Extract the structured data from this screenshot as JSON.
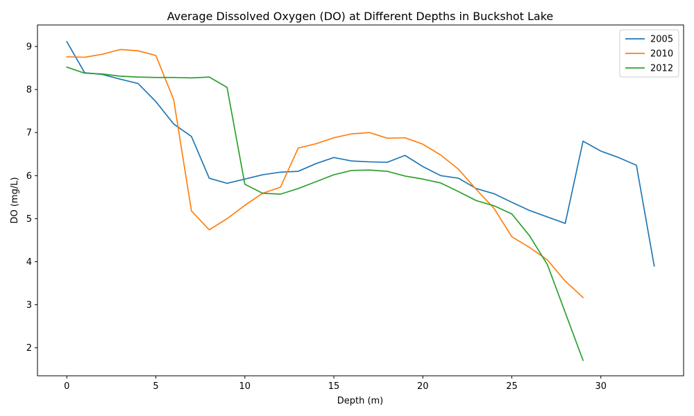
{
  "chart_data": {
    "type": "line",
    "title": "Average Dissolved Oxygen (DO) at Different Depths in Buckshot Lake",
    "xlabel": "Depth (m)",
    "ylabel": "DO (mg/L)",
    "xlim": [
      -1.65,
      34.65
    ],
    "ylim": [
      1.35,
      9.5
    ],
    "xticks": [
      0,
      5,
      10,
      15,
      20,
      25,
      30
    ],
    "yticks": [
      2,
      3,
      4,
      5,
      6,
      7,
      8,
      9
    ],
    "grid": false,
    "legend_position": "top-right",
    "series": [
      {
        "name": "2005",
        "color": "#1f77b4",
        "x": [
          0,
          1,
          2,
          3,
          4,
          5,
          6,
          7,
          8,
          9,
          10,
          11,
          12,
          13,
          14,
          15,
          16,
          17,
          18,
          19,
          20,
          21,
          22,
          23,
          24,
          25,
          26,
          27,
          28,
          29,
          30,
          31,
          32,
          33
        ],
        "values": [
          9.11,
          8.39,
          8.35,
          8.24,
          8.14,
          7.72,
          7.2,
          6.91,
          5.94,
          5.82,
          5.92,
          6.02,
          6.08,
          6.1,
          6.28,
          6.42,
          6.34,
          6.32,
          6.31,
          6.47,
          6.21,
          6.0,
          5.94,
          5.7,
          5.58,
          5.38,
          5.19,
          5.04,
          4.89,
          6.8,
          6.57,
          6.42,
          6.24,
          3.9
        ]
      },
      {
        "name": "2010",
        "color": "#ff7f0e",
        "x": [
          0,
          1,
          2,
          3,
          4,
          5,
          6,
          7,
          8,
          9,
          10,
          11,
          12,
          13,
          14,
          15,
          16,
          17,
          18,
          19,
          20,
          21,
          22,
          23,
          24,
          25,
          26,
          27,
          28,
          29
        ],
        "values": [
          8.76,
          8.75,
          8.82,
          8.93,
          8.9,
          8.79,
          7.77,
          5.18,
          4.74,
          5.0,
          5.31,
          5.59,
          5.73,
          6.64,
          6.74,
          6.88,
          6.97,
          7.0,
          6.87,
          6.88,
          6.73,
          6.48,
          6.15,
          5.68,
          5.24,
          4.58,
          4.33,
          4.04,
          3.55,
          3.17
        ]
      },
      {
        "name": "2012",
        "color": "#2ca02c",
        "x": [
          0,
          1,
          2,
          3,
          4,
          5,
          6,
          7,
          8,
          9,
          10,
          11,
          12,
          13,
          14,
          15,
          16,
          17,
          18,
          19,
          20,
          21,
          22,
          23,
          24,
          25,
          26,
          27,
          28,
          29
        ],
        "values": [
          8.52,
          8.38,
          8.36,
          8.31,
          8.29,
          8.28,
          8.28,
          8.27,
          8.29,
          8.05,
          5.8,
          5.59,
          5.57,
          5.7,
          5.86,
          6.02,
          6.12,
          6.13,
          6.1,
          5.99,
          5.92,
          5.83,
          5.63,
          5.42,
          5.3,
          5.11,
          4.6,
          3.93,
          2.82,
          1.71
        ]
      }
    ]
  }
}
